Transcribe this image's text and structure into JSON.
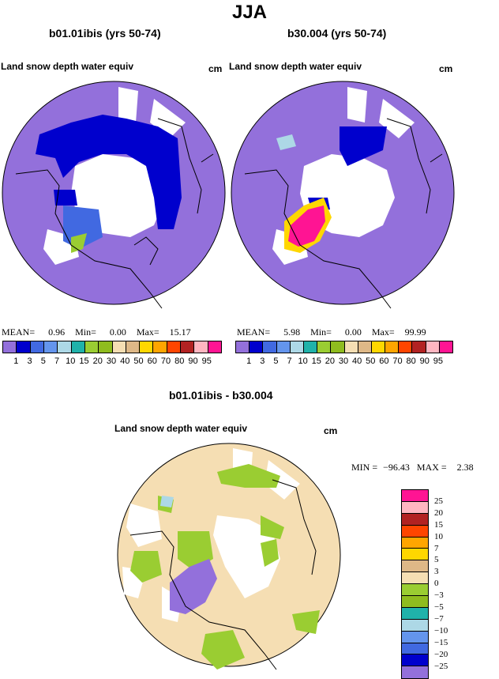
{
  "season": "JJA",
  "panels": {
    "left": {
      "title": "b01.01ibis (yrs 50-74)",
      "var": "Land snow depth water equiv",
      "unit": "cm",
      "mean_label": "MEAN=",
      "mean": "0.96",
      "min_label": "Min=",
      "min": "0.00",
      "max_label": "Max=",
      "max": "15.17"
    },
    "right": {
      "title": "b30.004 (yrs 50-74)",
      "var": "Land snow depth water equiv",
      "unit": "cm",
      "mean_label": "MEAN=",
      "mean": "5.98",
      "min_label": "Min=",
      "min": "0.00",
      "max_label": "Max=",
      "max": "99.99"
    },
    "diff": {
      "title": "b01.01ibis - b30.004",
      "var": "Land snow depth water equiv",
      "unit": "cm",
      "min_label": "MIN =",
      "min": "−96.43",
      "max_label": "MAX =",
      "max": "2.38"
    }
  },
  "colorbar_top": {
    "colors": [
      "#9370db",
      "#0000cd",
      "#4169e1",
      "#6495ed",
      "#add8e6",
      "#20b2aa",
      "#9acd32",
      "#8fbc1f",
      "#f5deb3",
      "#deb887",
      "#ffd700",
      "#ffa500",
      "#ff4500",
      "#b22222",
      "#ffb6c1",
      "#ff1493"
    ],
    "labels": [
      "1",
      "3",
      "5",
      "7",
      "10",
      "15",
      "20",
      "30",
      "40",
      "50",
      "60",
      "70",
      "80",
      "90",
      "95"
    ]
  },
  "colorbar_diff": {
    "colors": [
      "#ff1493",
      "#ffb6c1",
      "#b22222",
      "#ff4500",
      "#ffa500",
      "#ffd700",
      "#deb887",
      "#f5deb3",
      "#9acd32",
      "#8fbc1f",
      "#20b2aa",
      "#add8e6",
      "#6495ed",
      "#4169e1",
      "#0000cd",
      "#9370db"
    ],
    "labels": [
      "25",
      "20",
      "15",
      "10",
      "7",
      "5",
      "3",
      "0",
      "−3",
      "−5",
      "−7",
      "−10",
      "−15",
      "−20",
      "−25"
    ]
  },
  "map_colors": {
    "background": "#9370db",
    "blue": "#0000cd",
    "diff_background": "#f5deb3",
    "green": "#9acd32",
    "magenta": "#ff1493",
    "yellow": "#ffd700"
  }
}
